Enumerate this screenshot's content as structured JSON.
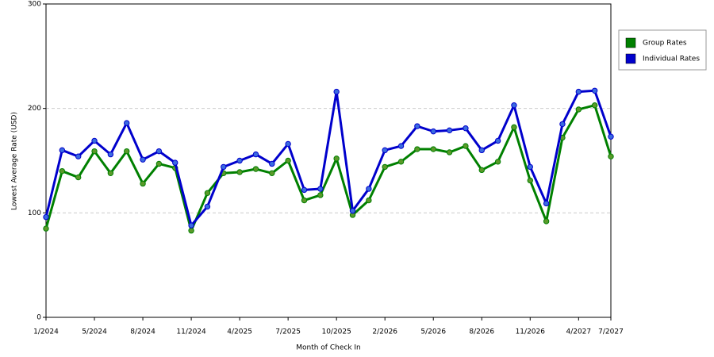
{
  "chart_data": {
    "type": "line",
    "x_label": "Month of Check In",
    "y_label": "Lowest Average Rate (USD)",
    "categories": [
      "1/2024",
      null,
      null,
      "5/2024",
      null,
      null,
      "8/2024",
      null,
      null,
      "11/2024",
      null,
      null,
      "4/2025",
      null,
      null,
      "7/2025",
      null,
      null,
      "10/2025",
      null,
      null,
      "2/2026",
      null,
      null,
      "5/2026",
      null,
      null,
      "8/2026",
      null,
      null,
      "11/2026",
      null,
      null,
      "4/2027",
      null,
      "7/2027"
    ],
    "series": [
      {
        "name": "Group Rates",
        "color": "#008000",
        "marker_color": "#5a9a2a",
        "values": [
          85,
          140,
          134,
          159,
          138,
          159,
          128,
          147,
          143,
          83,
          119,
          138,
          139,
          142,
          138,
          150,
          112,
          117,
          152,
          98,
          112,
          144,
          149,
          161,
          161,
          158,
          164,
          141,
          149,
          182,
          131,
          92,
          172,
          199,
          203,
          154
        ]
      },
      {
        "name": "Individual Rates",
        "color": "#0000cc",
        "marker_color": "#3a6ae0",
        "values": [
          96,
          160,
          154,
          169,
          156,
          186,
          151,
          159,
          148,
          88,
          106,
          144,
          150,
          156,
          147,
          166,
          122,
          123,
          216,
          102,
          123,
          160,
          164,
          183,
          178,
          179,
          181,
          160,
          169,
          203,
          144,
          109,
          185,
          216,
          217,
          173
        ]
      }
    ],
    "ylim": [
      0,
      300
    ],
    "yticks": [
      0,
      100,
      200,
      300
    ],
    "grid": true,
    "legend": "right"
  }
}
